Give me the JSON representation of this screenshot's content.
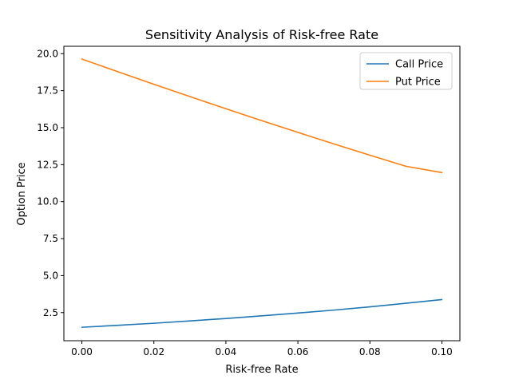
{
  "chart_data": {
    "type": "line",
    "title": "Sensitivity Analysis of Risk-free Rate",
    "xlabel": "Risk-free Rate",
    "ylabel": "Option Price",
    "xlim": [
      -0.005,
      0.105
    ],
    "ylim": [
      0.6,
      20.5
    ],
    "xticks": [
      0.0,
      0.02,
      0.04,
      0.06,
      0.08,
      0.1
    ],
    "xtick_labels": [
      "0.00",
      "0.02",
      "0.04",
      "0.06",
      "0.08",
      "0.10"
    ],
    "yticks": [
      2.5,
      5.0,
      7.5,
      10.0,
      12.5,
      15.0,
      17.5,
      20.0
    ],
    "ytick_labels": [
      "2.5",
      "5.0",
      "7.5",
      "10.0",
      "12.5",
      "15.0",
      "17.5",
      "20.0"
    ],
    "grid": false,
    "legend_position": "top-right",
    "x": [
      0.0,
      0.01,
      0.02,
      0.03,
      0.04,
      0.05,
      0.06,
      0.07,
      0.08,
      0.09,
      0.1
    ],
    "series": [
      {
        "name": "Call Price",
        "color": "#1f77b4",
        "values": [
          1.51,
          1.64,
          1.78,
          1.94,
          2.1,
          2.28,
          2.47,
          2.67,
          2.89,
          3.13,
          3.38
        ]
      },
      {
        "name": "Put Price",
        "color": "#ff7f0e",
        "values": [
          19.64,
          18.78,
          17.93,
          17.1,
          16.28,
          15.47,
          14.68,
          13.9,
          13.14,
          12.39,
          11.96
        ]
      }
    ]
  }
}
